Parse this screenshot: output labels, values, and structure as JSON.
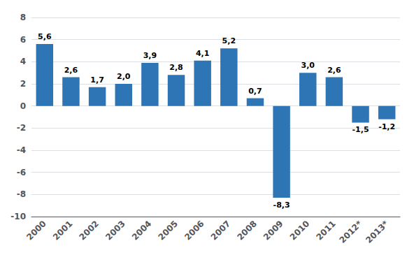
{
  "chart_data": {
    "type": "bar",
    "categories": [
      "2000",
      "2001",
      "2002",
      "2003",
      "2004",
      "2005",
      "2006",
      "2007",
      "2008",
      "2009",
      "2010",
      "2011",
      "2012*",
      "2013*"
    ],
    "values": [
      5.6,
      2.6,
      1.7,
      2.0,
      3.9,
      2.8,
      4.1,
      5.2,
      0.7,
      -8.3,
      3.0,
      2.6,
      -1.5,
      -1.2
    ],
    "value_labels": [
      "5,6",
      "2,6",
      "1,7",
      "2,0",
      "3,9",
      "2,8",
      "4,1",
      "5,2",
      "0,7",
      "-8,3",
      "3,0",
      "2,6",
      "-1,5",
      "-1,2"
    ],
    "data_labels": true,
    "color": "#2E75B6",
    "ylim": [
      -10,
      8
    ],
    "yticks": [
      -10,
      -8,
      -6,
      -4,
      -2,
      0,
      2,
      4,
      6,
      8
    ],
    "grid": true
  }
}
